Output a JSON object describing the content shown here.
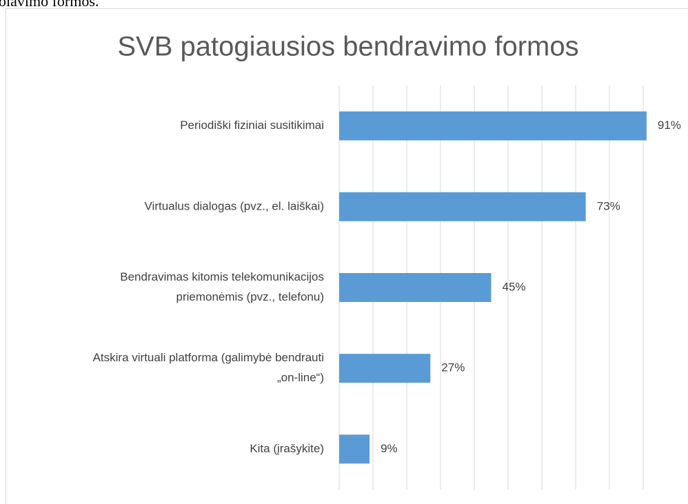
{
  "page_text": "olavimo formos.",
  "chart_data": {
    "type": "bar",
    "orientation": "horizontal",
    "title": "SVB patogiausios bendravimo formos",
    "categories": [
      [
        "Periodiški fiziniai susitikimai"
      ],
      [
        "Virtualus dialogas (pvz., el. laiškai)"
      ],
      [
        "Bendravimas kitomis telekomunikacijos",
        "priemonėmis (pvz., telefonu)"
      ],
      [
        "Atskira virtuali platforma (galimybė bendrauti",
        "„on-line“)"
      ],
      [
        "Kita (įrašykite)"
      ]
    ],
    "values": [
      91,
      73,
      45,
      27,
      9
    ],
    "value_labels": [
      "91%",
      "73%",
      "45%",
      "27%",
      "9%"
    ],
    "color": "#5b9bd5",
    "xlim": [
      0,
      100
    ],
    "xticks": [
      0,
      10,
      20,
      30,
      40,
      50,
      60,
      70,
      80,
      90
    ],
    "grid": true
  }
}
